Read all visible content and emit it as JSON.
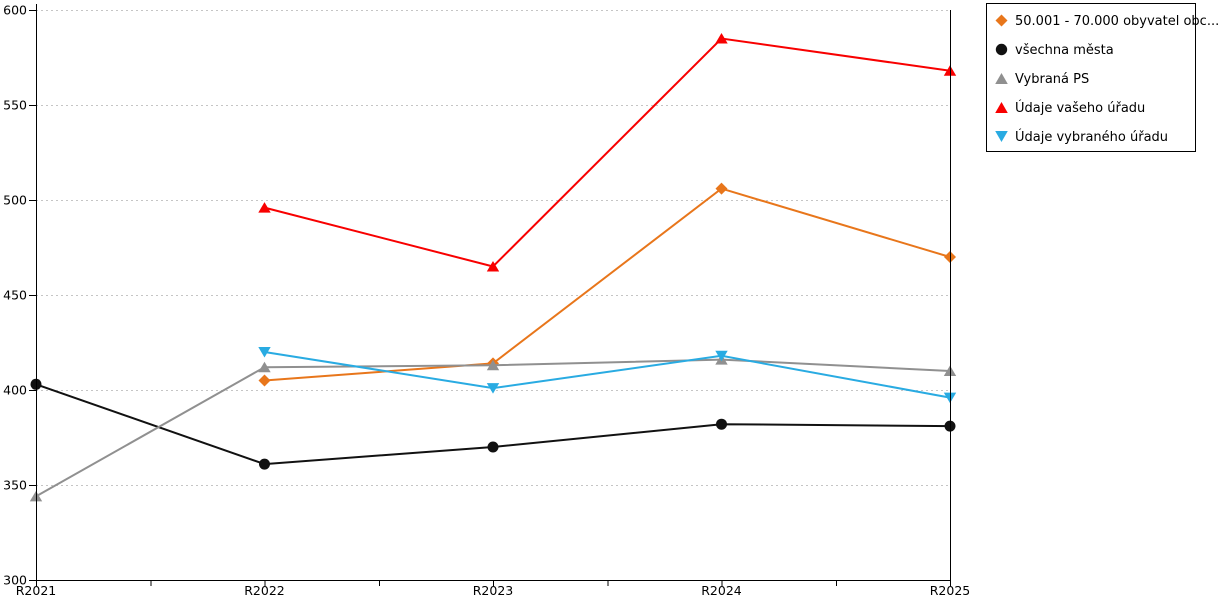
{
  "chart_data": {
    "type": "line",
    "title": "",
    "xlabel": "",
    "ylabel": "",
    "categories": [
      "R2021",
      "R2022",
      "R2023",
      "R2024",
      "R2025"
    ],
    "y_ticks": [
      300,
      350,
      400,
      450,
      500,
      550,
      600
    ],
    "ylim": [
      300,
      600
    ],
    "grid": "horizontal-dotted",
    "legend_position": "top-right-outside",
    "series": [
      {
        "name": "50.001 - 70.000 obyvatel obc...",
        "marker": "diamond",
        "color": "#E8761B",
        "values": [
          null,
          405,
          414,
          506,
          470
        ]
      },
      {
        "name": "všechna města",
        "marker": "circle",
        "color": "#111111",
        "values": [
          403,
          361,
          370,
          382,
          381
        ]
      },
      {
        "name": "Vybraná PS",
        "marker": "triangle-up",
        "color": "#909090",
        "values": [
          344,
          412,
          413,
          416,
          410
        ]
      },
      {
        "name": "Údaje vašeho úřadu",
        "marker": "triangle-up",
        "color": "#F80000",
        "values": [
          null,
          496,
          465,
          585,
          568
        ]
      },
      {
        "name": "Údaje vybraného úřadu",
        "marker": "triangle-down",
        "color": "#29ABE2",
        "values": [
          null,
          420,
          401,
          418,
          396
        ]
      }
    ]
  },
  "colors": {
    "grid": "#C5C5C5",
    "axis": "#000000",
    "background": "#FFFFFF"
  }
}
